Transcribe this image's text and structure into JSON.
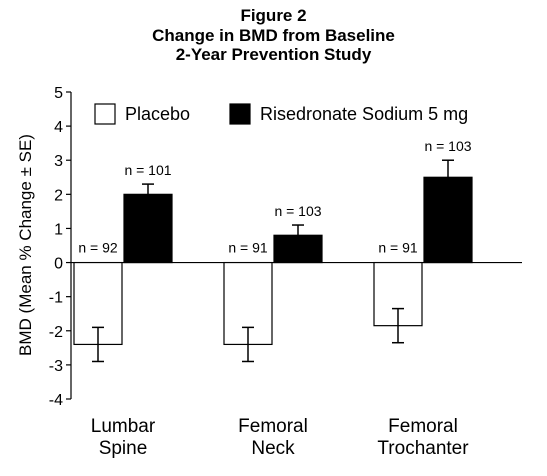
{
  "chart_data": {
    "type": "bar",
    "title_lines": [
      "Figure 2",
      "Change in BMD from Baseline",
      "2-Year Prevention Study"
    ],
    "ylabel": "BMD (Mean % Change ± SE)",
    "ylim": [
      -4,
      5
    ],
    "yticks": [
      "5",
      "4",
      "3",
      "2",
      "1",
      "0",
      "-1",
      "-2",
      "-3",
      "-4"
    ],
    "ytick_values": [
      5,
      4,
      3,
      2,
      1,
      0,
      -1,
      -2,
      -3,
      -4
    ],
    "categories": [
      {
        "lines": [
          "Lumbar",
          "Spine"
        ]
      },
      {
        "lines": [
          "Femoral",
          "Neck"
        ]
      },
      {
        "lines": [
          "Femoral",
          "Trochanter"
        ]
      }
    ],
    "legend_position": "top-left",
    "series": [
      {
        "name": "Placebo",
        "fill": "#ffffff",
        "values": [
          -2.4,
          -2.4,
          -1.85
        ],
        "se": [
          0.5,
          0.5,
          0.5
        ],
        "n_labels": [
          "n = 92",
          "n = 91",
          "n = 91"
        ]
      },
      {
        "name": "Risedronate Sodium 5 mg",
        "fill": "#000000",
        "values": [
          2.0,
          0.8,
          2.5
        ],
        "se": [
          0.3,
          0.3,
          0.5
        ],
        "n_labels": [
          "n = 101",
          "n = 103",
          "n = 103"
        ]
      }
    ]
  }
}
